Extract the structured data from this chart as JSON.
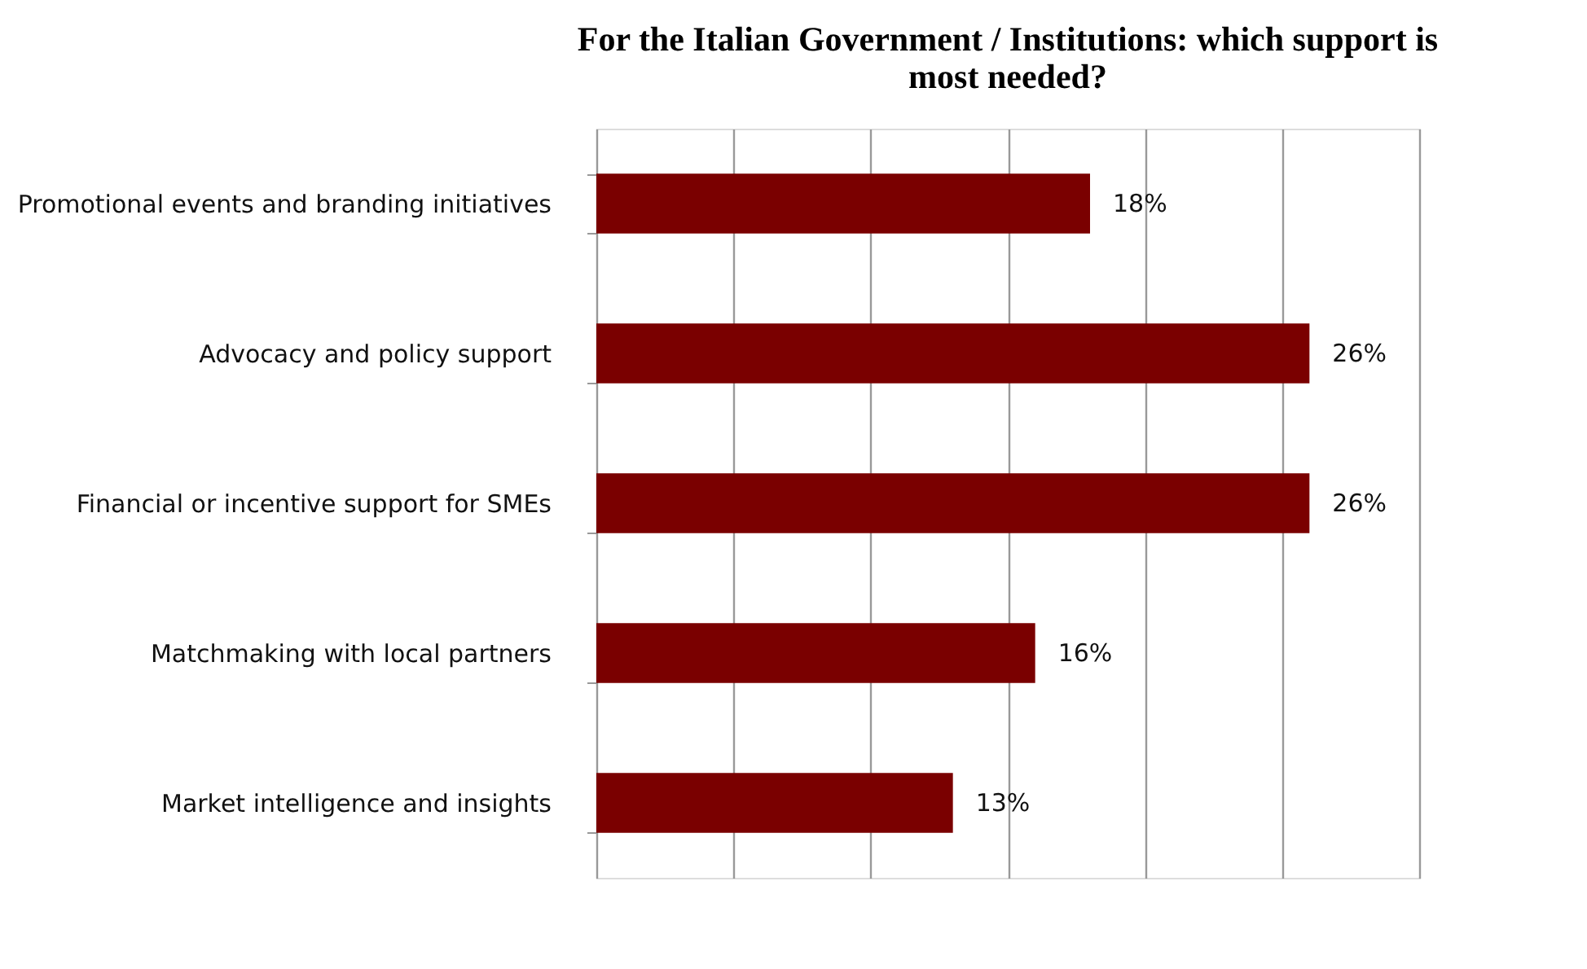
{
  "chart_data": {
    "type": "bar",
    "orientation": "horizontal",
    "title": [
      "For the Italian Government / Institutions: which support is",
      "most needed?"
    ],
    "categories": [
      "Promotional events and branding initiatives",
      "Advocacy and policy support",
      "Financial or incentive support for SMEs",
      "Matchmaking with local partners",
      "Market intelligence and insights"
    ],
    "values": [
      18,
      26,
      26,
      16,
      13
    ],
    "value_labels": [
      "18%",
      "26%",
      "26%",
      "16%",
      "13%"
    ],
    "color": "#7a0000",
    "xlim": [
      0,
      30
    ],
    "xticks": [
      {
        "value": 0,
        "label": null
      },
      {
        "value": 5,
        "label": null
      },
      {
        "value": 10,
        "label": null
      },
      {
        "value": 15,
        "label": null
      },
      {
        "value": 20,
        "label": null
      },
      {
        "value": 25,
        "label": null
      },
      {
        "value": 30,
        "label": null
      }
    ],
    "grid": "x",
    "tick_labels": "y"
  }
}
